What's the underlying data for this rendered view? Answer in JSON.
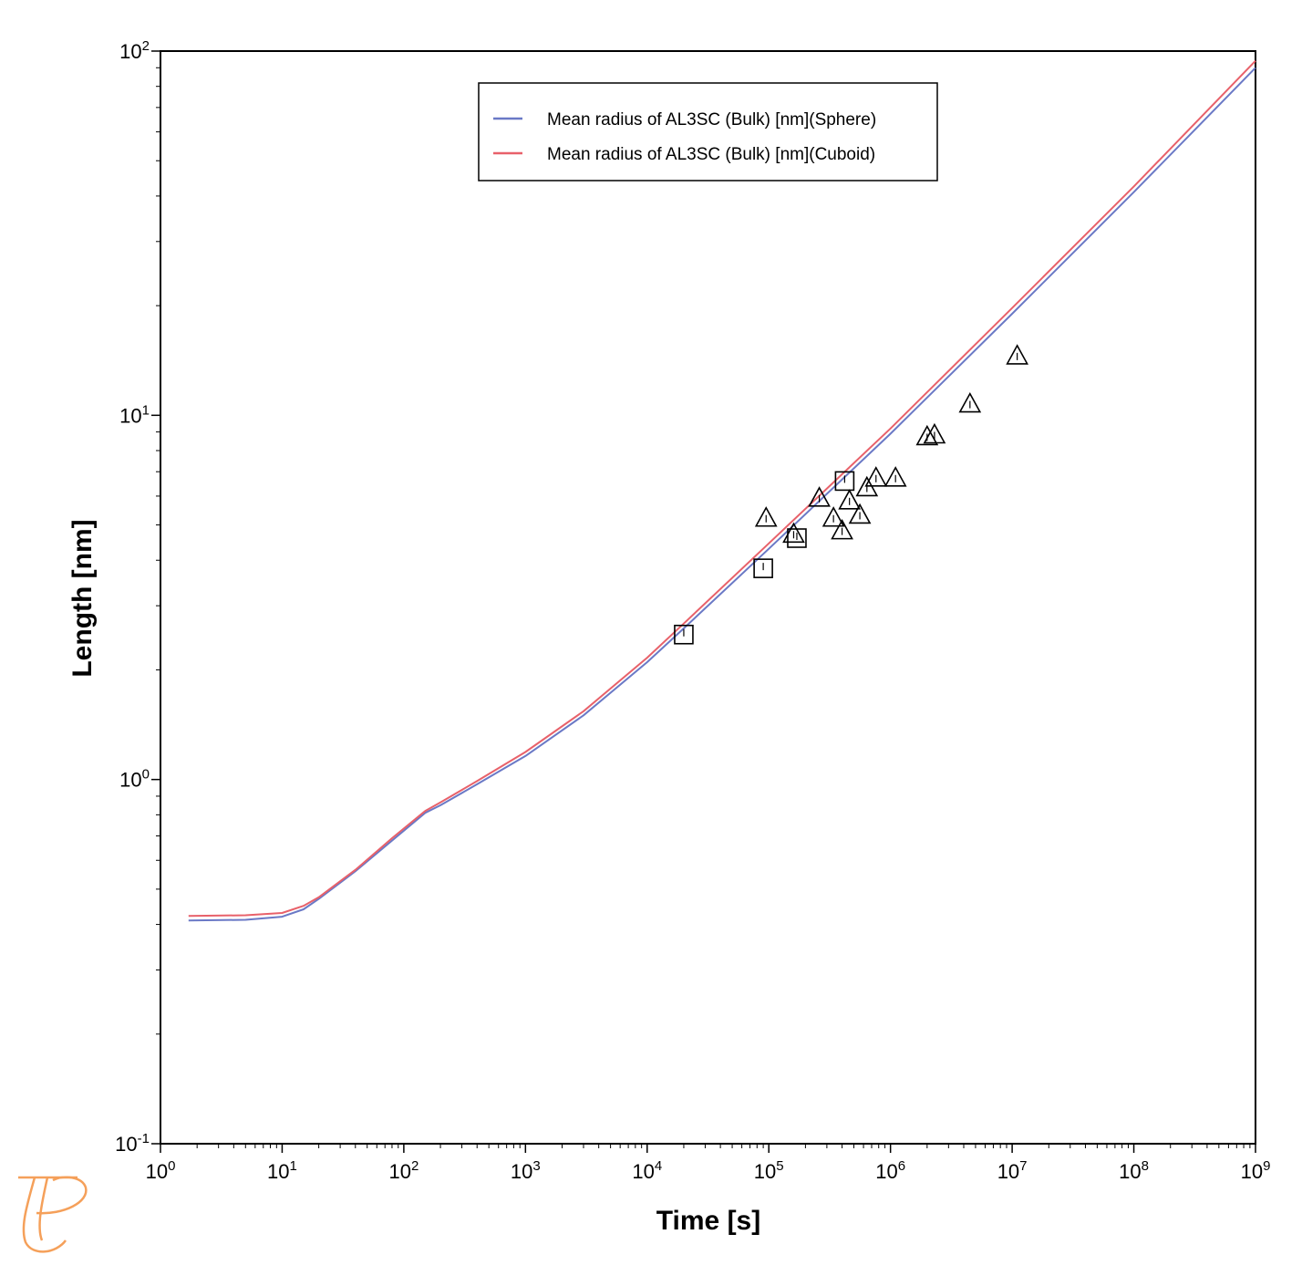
{
  "chart_data": {
    "type": "line",
    "title": "",
    "xlabel": "Time [s]",
    "ylabel": "Length [nm]",
    "xscale": "log",
    "yscale": "log",
    "xlim": [
      1,
      1000000000
    ],
    "ylim": [
      0.1,
      100
    ],
    "x_ticks": [
      {
        "base": "10",
        "exp": "0"
      },
      {
        "base": "10",
        "exp": "1"
      },
      {
        "base": "10",
        "exp": "2"
      },
      {
        "base": "10",
        "exp": "3"
      },
      {
        "base": "10",
        "exp": "4"
      },
      {
        "base": "10",
        "exp": "5"
      },
      {
        "base": "10",
        "exp": "6"
      },
      {
        "base": "10",
        "exp": "7"
      },
      {
        "base": "10",
        "exp": "8"
      },
      {
        "base": "10",
        "exp": "9"
      }
    ],
    "y_ticks": [
      {
        "value": 0.1,
        "base": "10",
        "exp": "-1"
      },
      {
        "value": 1,
        "base": "10",
        "exp": "0"
      },
      {
        "value": 10,
        "base": "10",
        "exp": "1"
      },
      {
        "value": 100,
        "base": "10",
        "exp": "2"
      }
    ],
    "grid": false,
    "legend_position": "top-center",
    "series": [
      {
        "name": "Mean radius of AL3SC (Bulk) [nm](Sphere)",
        "color": "#6a79c6",
        "x": [
          1.7,
          5,
          10,
          15,
          20,
          40,
          80,
          150,
          200,
          400,
          1000,
          3000,
          10000,
          20000,
          100000,
          1000000,
          10000000,
          100000000,
          1000000000
        ],
        "y": [
          0.41,
          0.412,
          0.42,
          0.44,
          0.47,
          0.56,
          0.68,
          0.81,
          0.85,
          0.97,
          1.16,
          1.5,
          2.1,
          2.6,
          4.3,
          8.9,
          19.0,
          41.0,
          90.0
        ]
      },
      {
        "name": "Mean radius of AL3SC (Bulk) [nm](Cuboid)",
        "color": "#e8616a",
        "x": [
          1.7,
          5,
          10,
          15,
          20,
          40,
          80,
          150,
          200,
          400,
          1000,
          3000,
          10000,
          20000,
          100000,
          1000000,
          10000000,
          100000000,
          1000000000
        ],
        "y": [
          0.422,
          0.424,
          0.43,
          0.45,
          0.475,
          0.565,
          0.69,
          0.82,
          0.865,
          0.99,
          1.19,
          1.54,
          2.16,
          2.68,
          4.45,
          9.2,
          19.7,
          42.5,
          94.0
        ]
      }
    ],
    "markers": [
      {
        "shape": "square",
        "points": [
          [
            20000,
            2.5
          ],
          [
            90000,
            3.8
          ],
          [
            170000,
            4.6
          ],
          [
            420000,
            6.6
          ]
        ]
      },
      {
        "shape": "triangle",
        "points": [
          [
            95000,
            5.2
          ],
          [
            160000,
            4.7
          ],
          [
            260000,
            5.9
          ],
          [
            340000,
            5.2
          ],
          [
            400000,
            4.8
          ],
          [
            460000,
            5.8
          ],
          [
            560000,
            5.3
          ],
          [
            640000,
            6.3
          ],
          [
            760000,
            6.7
          ],
          [
            1100000,
            6.7
          ],
          [
            2000000,
            8.7
          ],
          [
            2300000,
            8.8
          ],
          [
            4500000,
            10.7
          ],
          [
            11000000,
            14.5
          ]
        ]
      }
    ]
  },
  "colors": {
    "logo": "#f5a05a"
  },
  "logo_icon": "thermo-calc-logo-icon"
}
